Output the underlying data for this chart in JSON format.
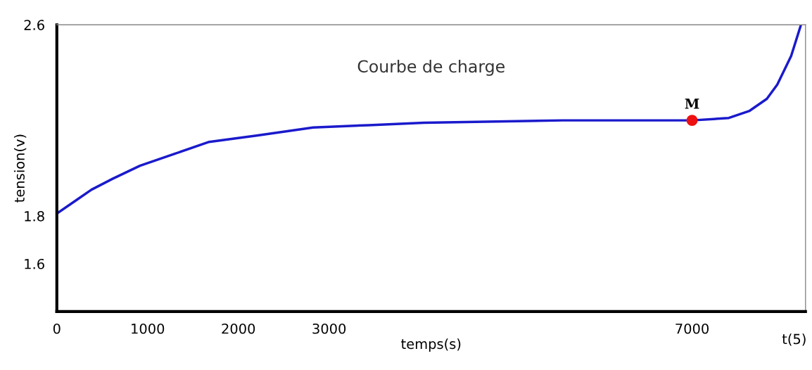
{
  "chart_data": {
    "type": "line",
    "title": "Courbe de charge",
    "xlabel": "temps(s)",
    "ylabel": "tension(v)",
    "x": [
      0,
      229,
      382,
      611,
      916,
      1298,
      1679,
      2214,
      2824,
      3435,
      4046,
      5573,
      7000,
      7405,
      7634,
      7824,
      7939,
      8092,
      8200
    ],
    "series": [
      {
        "color": "#1a1acc",
        "values": [
          1.81,
          1.87,
          1.91,
          1.955,
          2.01,
          2.06,
          2.11,
          2.137,
          2.17,
          2.18,
          2.19,
          2.2,
          2.2,
          2.21,
          2.24,
          2.29,
          2.35,
          2.47,
          2.6
        ]
      },
      {
        "type": "scatter",
        "marker": "circle",
        "color": "#ee1111",
        "x": [
          7000
        ],
        "values": [
          2.2
        ]
      }
    ],
    "annotations": [
      {
        "text": "M",
        "x": 7000,
        "y": 2.2
      },
      "t(5)"
    ],
    "xlim": [
      0,
      8250
    ],
    "ylim": [
      1.4,
      2.6
    ],
    "xticks": [
      0,
      1000,
      2000,
      3000,
      7000
    ],
    "yticks": [
      1.6,
      1.8,
      2.6
    ],
    "grid": false,
    "legend": false,
    "marker": "none",
    "line_style": "solid"
  }
}
